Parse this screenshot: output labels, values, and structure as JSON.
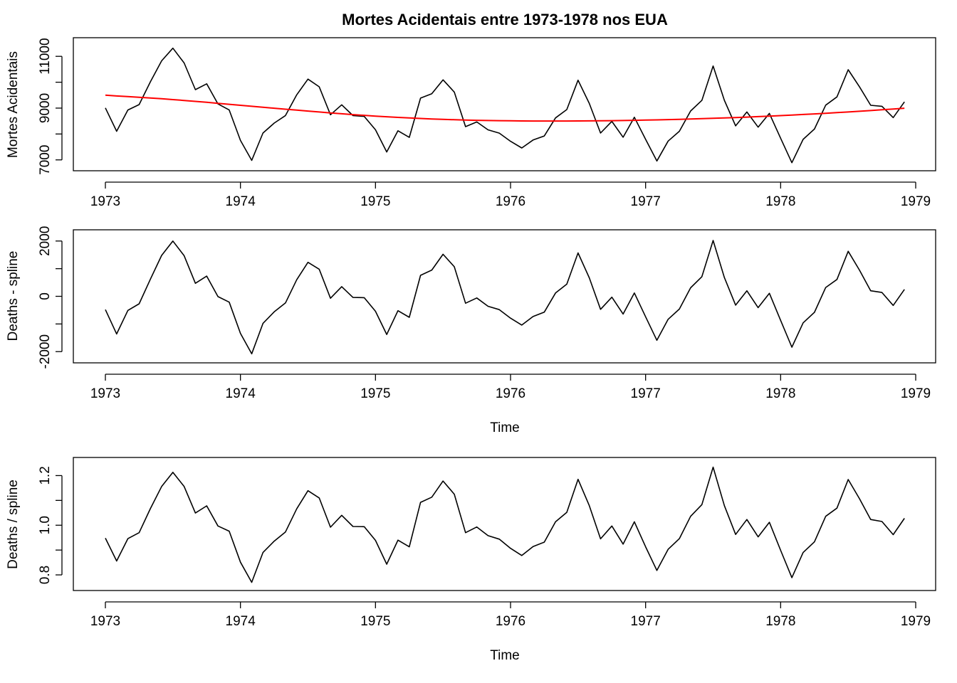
{
  "title": "Mortes Acidentais entre 1973-1978 nos EUA",
  "colors": {
    "raw_series": "#000000",
    "spline": "#ff0000"
  },
  "chart_data": [
    {
      "type": "line",
      "ylabel": "Mortes Acidentais",
      "xlabel": "",
      "x_ticks": [
        1973,
        1974,
        1975,
        1976,
        1977,
        1978,
        1979
      ],
      "y_ticks": [
        7000,
        9000,
        11000
      ],
      "y_tick_labels": [
        "7000",
        "9000",
        "11000"
      ],
      "xlim": [
        1973,
        1979
      ],
      "ylim": [
        6800,
        11500
      ],
      "series": [
        {
          "values": [
            9007,
            8106,
            8928,
            9137,
            10017,
            10826,
            11317,
            10744,
            9713,
            9938,
            9161,
            8927,
            7750,
            6981,
            8038,
            8422,
            8714,
            9512,
            10120,
            9823,
            8743,
            9129,
            8710,
            8680,
            8162,
            7306,
            8124,
            7870,
            9387,
            9556,
            10093,
            9620,
            8285,
            8466,
            8160,
            8034,
            7717,
            7461,
            7767,
            7925,
            8623,
            8945,
            10078,
            9179,
            8037,
            8488,
            7874,
            8647,
            7792,
            6957,
            7726,
            8106,
            8890,
            9299,
            10625,
            9302,
            8314,
            8850,
            8265,
            8796,
            7836,
            6892,
            7791,
            8192,
            9115,
            9434,
            10484,
            9827,
            9110,
            9070,
            8633,
            9240
          ]
        },
        {
          "values": [
            9500,
            9470,
            9445,
            9420,
            9392,
            9362,
            9330,
            9295,
            9260,
            9223,
            9185,
            9147,
            9108,
            9070,
            9032,
            8995,
            8958,
            8921,
            8885,
            8850,
            8815,
            8782,
            8750,
            8720,
            8692,
            8666,
            8642,
            8620,
            8600,
            8582,
            8566,
            8552,
            8540,
            8530,
            8521,
            8514,
            8509,
            8505,
            8502,
            8500,
            8500,
            8501,
            8503,
            8506,
            8510,
            8515,
            8521,
            8528,
            8536,
            8545,
            8555,
            8566,
            8578,
            8591,
            8605,
            8620,
            8636,
            8653,
            8671,
            8690,
            8710,
            8731,
            8753,
            8776,
            8800,
            8825,
            8851,
            8878,
            8906,
            8935,
            8965,
            8996
          ]
        }
      ]
    },
    {
      "type": "line",
      "ylabel": "Deaths - spline",
      "xlabel": "Time",
      "x_ticks": [
        1973,
        1974,
        1975,
        1976,
        1977,
        1978,
        1979
      ],
      "y_ticks": [
        -2000,
        0,
        2000
      ],
      "y_tick_labels": [
        "-2000",
        "0",
        "2000"
      ],
      "xlim": [
        1973,
        1979
      ],
      "ylim": [
        -2200,
        2200
      ],
      "series": [
        {
          "values": [
            -480,
            -1360,
            -510,
            -270,
            620,
            1480,
            2000,
            1470,
            470,
            730,
            -10,
            -210,
            -1340,
            -2080,
            -980,
            -560,
            -240,
            600,
            1230,
            980,
            -70,
            350,
            -40,
            -50,
            -540,
            -1380,
            -520,
            -760,
            760,
            950,
            1520,
            1070,
            -250,
            -60,
            -360,
            -480,
            -790,
            -1040,
            -730,
            -570,
            120,
            440,
            1570,
            670,
            -470,
            -30,
            -640,
            120,
            -740,
            -1590,
            -830,
            -460,
            310,
            710,
            2020,
            680,
            -320,
            200,
            -410,
            110,
            -870,
            -1840,
            -960,
            -580,
            320,
            610,
            1630,
            950,
            200,
            140,
            -330,
            250
          ]
        }
      ]
    },
    {
      "type": "line",
      "ylabel": "Deaths / spline",
      "xlabel": "Time",
      "x_ticks": [
        1973,
        1974,
        1975,
        1976,
        1977,
        1978,
        1979
      ],
      "y_ticks": [
        0.8,
        1.0,
        1.2
      ],
      "y_tick_labels": [
        "0.8",
        "1.0",
        "1.2"
      ],
      "xlim": [
        1973,
        1979
      ],
      "ylim": [
        0.76,
        1.25
      ],
      "series": [
        {
          "values": [
            0.948,
            0.856,
            0.946,
            0.97,
            1.067,
            1.156,
            1.213,
            1.156,
            1.049,
            1.078,
            0.997,
            0.976,
            0.851,
            0.77,
            0.89,
            0.936,
            0.973,
            1.066,
            1.139,
            1.11,
            0.992,
            1.04,
            0.995,
            0.994,
            0.939,
            0.843,
            0.94,
            0.913,
            1.092,
            1.113,
            1.178,
            1.125,
            0.97,
            0.993,
            0.958,
            0.944,
            0.907,
            0.878,
            0.914,
            0.932,
            1.014,
            1.052,
            1.185,
            1.079,
            0.945,
            0.997,
            0.924,
            1.014,
            0.913,
            0.818,
            0.903,
            0.946,
            1.036,
            1.083,
            1.234,
            1.079,
            0.963,
            1.023,
            0.953,
            1.012,
            0.899,
            0.789,
            0.89,
            0.933,
            1.036,
            1.069,
            1.184,
            1.107,
            1.023,
            1.015,
            0.962,
            1.028
          ]
        }
      ]
    }
  ]
}
